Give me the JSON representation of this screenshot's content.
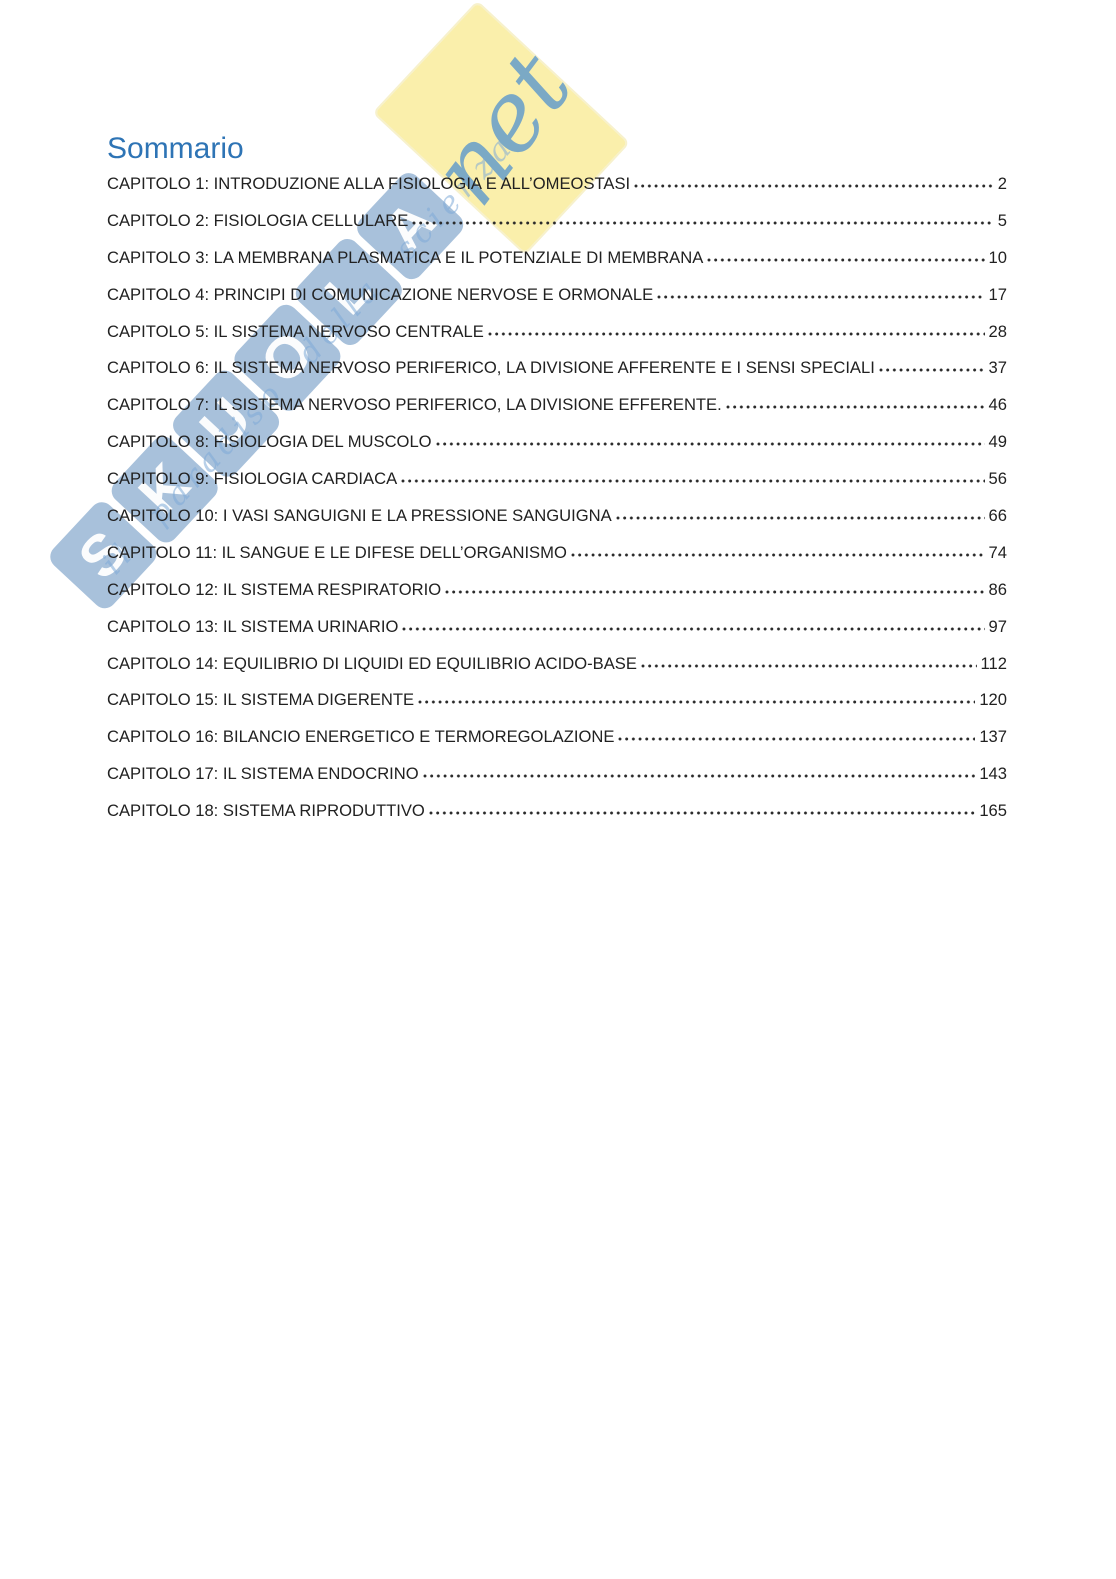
{
  "page": {
    "title": "Sommario"
  },
  "colors": {
    "title_accent": "#2e74b5",
    "body_text": "#212121",
    "watermark_blue": "#2f6caa",
    "watermark_yellow": "#f8ea94",
    "watermark_script_blue": "#5091cd"
  },
  "watermark": {
    "letters": [
      "S",
      "K",
      "U",
      "O",
      "L",
      "A"
    ],
    "suffix": "net",
    "tagline": "il paradiso della scienza"
  },
  "toc": {
    "entries": [
      {
        "label": "CAPITOLO 1: INTRODUZIONE ALLA FISIOLOGIA E ALL’OMEOSTASI",
        "page": "2"
      },
      {
        "label": "CAPITOLO 2: FISIOLOGIA CELLULARE",
        "page": "5"
      },
      {
        "label": "CAPITOLO 3: LA MEMBRANA PLASMATICA E IL POTENZIALE DI MEMBRANA",
        "page": "10"
      },
      {
        "label": "CAPITOLO 4: PRINCIPI DI COMUNICAZIONE NERVOSE E ORMONALE",
        "page": "17"
      },
      {
        "label": "CAPITOLO 5: IL SISTEMA NERVOSO CENTRALE",
        "page": "28"
      },
      {
        "label": "CAPITOLO 6: IL SISTEMA NERVOSO PERIFERICO, LA DIVISIONE AFFERENTE E I SENSI SPECIALI",
        "page": "37"
      },
      {
        "label": "CAPITOLO 7: IL SISTEMA NERVOSO PERIFERICO, LA DIVISIONE EFFERENTE.",
        "page": "46"
      },
      {
        "label": "CAPITOLO 8: FISIOLOGIA DEL MUSCOLO",
        "page": "49"
      },
      {
        "label": "CAPITOLO 9: FISIOLOGIA CARDIACA",
        "page": "56"
      },
      {
        "label": "CAPITOLO 10: I VASI SANGUIGNI E LA PRESSIONE SANGUIGNA",
        "page": "66"
      },
      {
        "label": "CAPITOLO 11: IL SANGUE E LE DIFESE DELL’ORGANISMO",
        "page": "74"
      },
      {
        "label": "CAPITOLO 12: IL SISTEMA RESPIRATORIO",
        "page": "86"
      },
      {
        "label": "CAPITOLO 13: IL SISTEMA URINARIO",
        "page": "97"
      },
      {
        "label": "CAPITOLO 14: EQUILIBRIO DI LIQUIDI ED EQUILIBRIO ACIDO-BASE",
        "page": "112"
      },
      {
        "label": "CAPITOLO 15: IL SISTEMA DIGERENTE",
        "page": "120"
      },
      {
        "label": "CAPITOLO 16: BILANCIO ENERGETICO E TERMOREGOLAZIONE",
        "page": "137"
      },
      {
        "label": "CAPITOLO 17: IL SISTEMA ENDOCRINO",
        "page": "143"
      },
      {
        "label": "CAPITOLO 18: SISTEMA RIPRODUTTIVO",
        "page": "165"
      }
    ]
  }
}
